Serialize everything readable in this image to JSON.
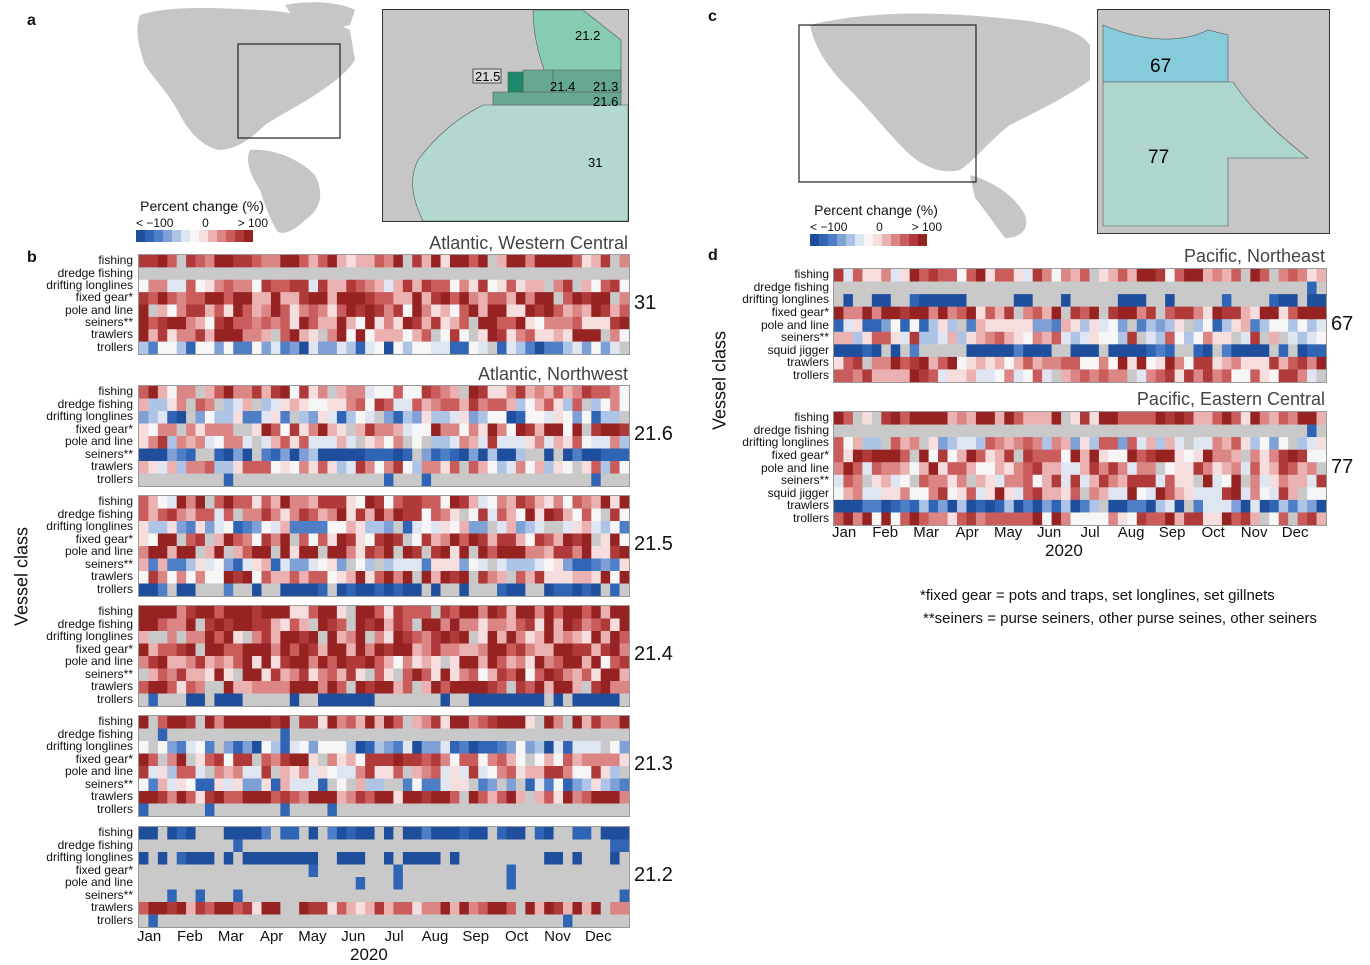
{
  "panel_labels": {
    "a": "a",
    "b": "b",
    "c": "c",
    "d": "d"
  },
  "legend": {
    "title": "Percent change (%)",
    "tick_low": "< −100",
    "tick_mid": "0",
    "tick_high": "> 100",
    "colors": [
      "#1f4e9c",
      "#2f65b4",
      "#4e7fc6",
      "#7ea0d6",
      "#aec4e6",
      "#dfe6f2",
      "#f6f6f6",
      "#f6dede",
      "#ebb1b1",
      "#dc8585",
      "#cb5c5c",
      "#b03a3a",
      "#962222"
    ]
  },
  "map_a": {
    "inset_labels": [
      "21.2",
      "21.5",
      "21.4",
      "21.3",
      "21.6",
      "31"
    ],
    "colors": {
      "ocean": "#b2d8cf",
      "land": "#c6c6c6",
      "region_light": "#86ccb0",
      "region_mid": "#66a990",
      "region_dark": "#1c8a6a"
    }
  },
  "map_c": {
    "inset_labels": [
      "67",
      "77"
    ],
    "colors": {
      "north": "#86cbd9",
      "south": "#aed6ce",
      "land": "#c6c6c6"
    }
  },
  "vessel_classes": [
    "fishing",
    "dredge fishing",
    "drifting longlines",
    "fixed gear*",
    "pole and line",
    "seiners**",
    "trawlers",
    "trollers"
  ],
  "vessel_classes_pacific": [
    "fishing",
    "dredge fishing",
    "drifting longlines",
    "fixed gear*",
    "pole and line",
    "seiners**",
    "squid jigger",
    "trawlers",
    "trollers"
  ],
  "months": [
    "Jan",
    "Feb",
    "Mar",
    "Apr",
    "May",
    "Jun",
    "Jul",
    "Aug",
    "Sep",
    "Oct",
    "Nov",
    "Dec"
  ],
  "xlabel": "2020",
  "ylabel": "Vessel class",
  "footnotes": [
    "*fixed gear = pots and traps, set longlines, set gillnets",
    "**seiners = purse seiners, other purse seines, other seiners"
  ],
  "chart_data": [
    {
      "type": "heatmap",
      "title": "Atlantic, Western Central",
      "region": "31",
      "rows": [
        "fishing",
        "dredge fishing",
        "drifting longlines",
        "fixed gear*",
        "pole and line",
        "seiners**",
        "trawlers",
        "trollers"
      ],
      "x_range": [
        "Jan",
        "Dec"
      ],
      "scale": [
        -100,
        100
      ],
      "profile": [
        0.75,
        -2,
        0.35,
        0.85,
        0.65,
        0.6,
        0.6,
        -0.5
      ]
    },
    {
      "type": "heatmap",
      "title": "Atlantic, Northwest",
      "region": "21.6",
      "rows": [
        "fishing",
        "dredge fishing",
        "drifting longlines",
        "fixed gear*",
        "pole and line",
        "seiners**",
        "trawlers",
        "trollers"
      ],
      "x_range": [
        "Jan",
        "Dec"
      ],
      "scale": [
        -100,
        100
      ],
      "profile": [
        0.4,
        0.2,
        -0.35,
        0.5,
        0.3,
        -0.95,
        0.2,
        -2
      ]
    },
    {
      "type": "heatmap",
      "title": "",
      "region": "21.5",
      "rows": [
        "fishing",
        "dredge fishing",
        "drifting longlines",
        "fixed gear*",
        "pole and line",
        "seiners**",
        "trawlers",
        "trollers"
      ],
      "x_range": [
        "Jan",
        "Dec"
      ],
      "scale": [
        -100,
        100
      ],
      "profile": [
        0.5,
        0.4,
        -0.2,
        0.6,
        0.7,
        -0.3,
        0.55,
        -1.2
      ]
    },
    {
      "type": "heatmap",
      "title": "",
      "region": "21.4",
      "rows": [
        "fishing",
        "dredge fishing",
        "drifting longlines",
        "fixed gear*",
        "pole and line",
        "seiners**",
        "trawlers",
        "trollers"
      ],
      "x_range": [
        "Jan",
        "Dec"
      ],
      "scale": [
        -100,
        100
      ],
      "profile": [
        0.8,
        0.75,
        0.7,
        0.85,
        0.6,
        0.55,
        0.8,
        -1.5
      ]
    },
    {
      "type": "heatmap",
      "title": "",
      "region": "21.3",
      "rows": [
        "fishing",
        "dredge fishing",
        "drifting longlines",
        "fixed gear*",
        "pole and line",
        "seiners**",
        "trawlers",
        "trollers"
      ],
      "x_range": [
        "Jan",
        "Dec"
      ],
      "scale": [
        -100,
        100
      ],
      "profile": [
        0.8,
        -2,
        -0.5,
        0.5,
        0.3,
        -0.3,
        0.75,
        -1.6
      ]
    },
    {
      "type": "heatmap",
      "title": "",
      "region": "21.2",
      "rows": [
        "fishing",
        "dredge fishing",
        "drifting longlines",
        "fixed gear*",
        "pole and line",
        "seiners**",
        "trawlers",
        "trollers"
      ],
      "x_range": [
        "Jan",
        "Dec"
      ],
      "scale": [
        -100,
        100
      ],
      "profile": [
        -1.3,
        -2,
        -1.5,
        -1.8,
        -1.9,
        -2,
        0.7,
        -1.9
      ]
    },
    {
      "type": "heatmap",
      "title": "Pacific, Northeast",
      "region": "67",
      "rows": [
        "fishing",
        "dredge fishing",
        "drifting longlines",
        "fixed gear*",
        "pole and line",
        "seiners**",
        "squid jigger",
        "trawlers",
        "trollers"
      ],
      "x_range": [
        "Jan",
        "Dec"
      ],
      "scale": [
        -100,
        100
      ],
      "profile": [
        0.45,
        -2,
        -1.4,
        0.75,
        -0.3,
        0.2,
        -1.2,
        0.5,
        0.35
      ]
    },
    {
      "type": "heatmap",
      "title": "Pacific, Eastern Central",
      "region": "77",
      "rows": [
        "fishing",
        "dredge fishing",
        "drifting longlines",
        "fixed gear*",
        "pole and line",
        "seiners**",
        "squid jigger",
        "trawlers",
        "trollers"
      ],
      "x_range": [
        "Jan",
        "Dec"
      ],
      "scale": [
        -100,
        100
      ],
      "profile": [
        0.75,
        -2,
        0.1,
        0.55,
        0.4,
        0.35,
        0.4,
        -0.75,
        0.55
      ]
    }
  ]
}
